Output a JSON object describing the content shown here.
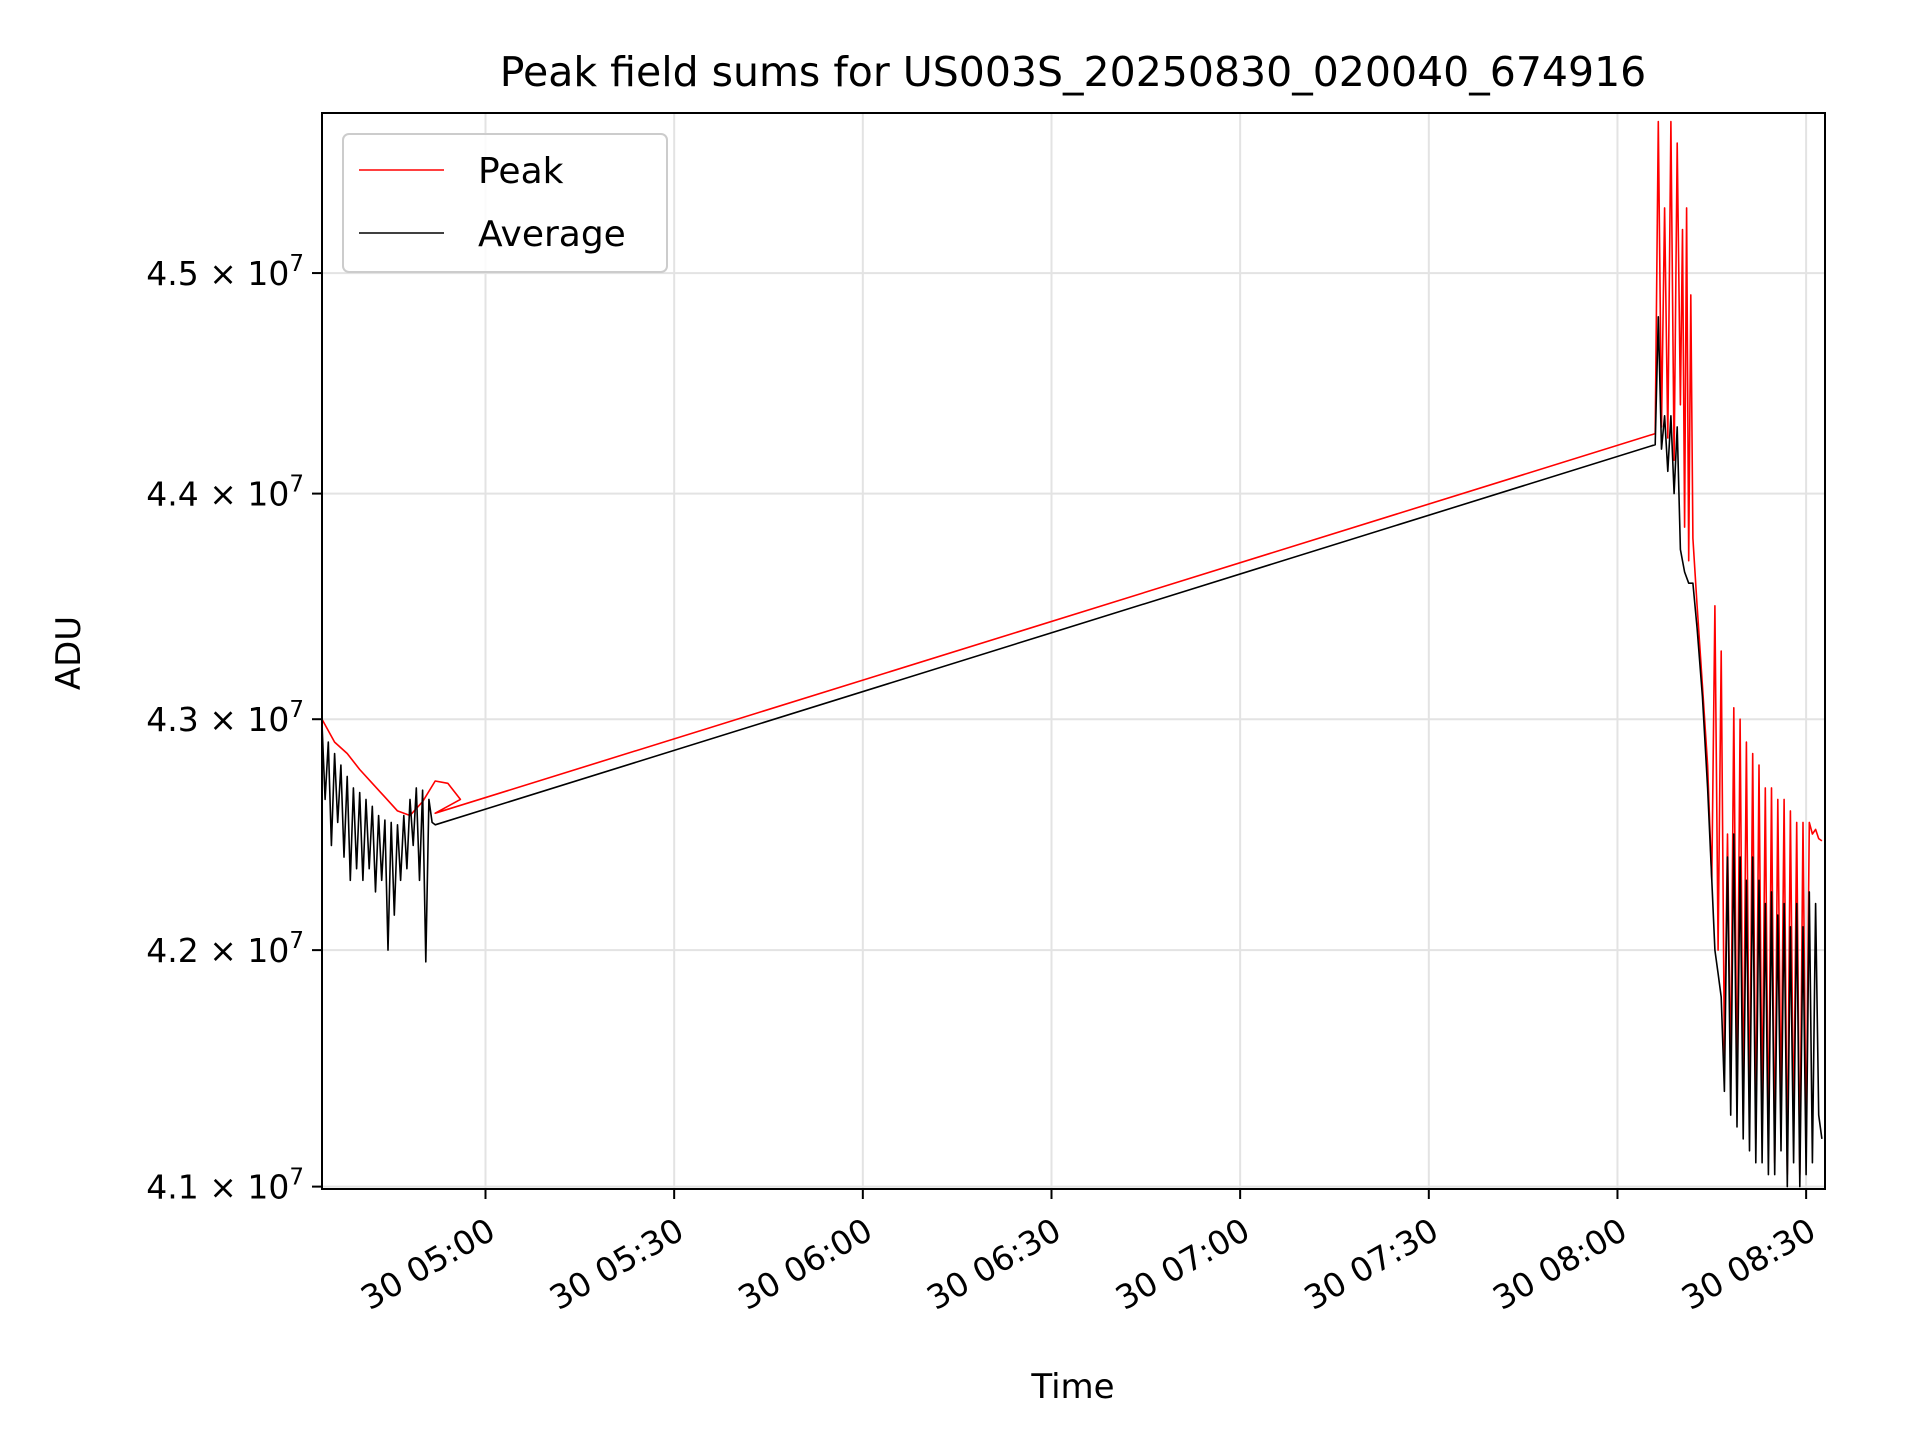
{
  "chart_data": {
    "type": "line",
    "title": "Peak field sums for US003S_20250830_020040_674916",
    "xlabel": "Time",
    "ylabel": "ADU",
    "x_tick_labels": [
      "30 05:00",
      "30 05:30",
      "30 06:00",
      "30 06:30",
      "30 07:00",
      "30 07:30",
      "30 08:00",
      "30 08:30"
    ],
    "x_tick_values": [
      "2025-08-30 05:00",
      "2025-08-30 05:30",
      "2025-08-30 06:00",
      "2025-08-30 06:30",
      "2025-08-30 07:00",
      "2025-08-30 07:30",
      "2025-08-30 08:00",
      "2025-08-30 08:30"
    ],
    "xlim": [
      "2025-08-30 04:34",
      "2025-08-30 08:33"
    ],
    "y_scale": "log",
    "y_ticks": [
      {
        "value": 41000000,
        "mantissa": "4.1",
        "exponent": "7"
      },
      {
        "value": 42000000,
        "mantissa": "4.2",
        "exponent": "7"
      },
      {
        "value": 43000000,
        "mantissa": "4.3",
        "exponent": "7"
      },
      {
        "value": 44000000,
        "mantissa": "4.4",
        "exponent": "7"
      },
      {
        "value": 45000000,
        "mantissa": "4.5",
        "exponent": "7"
      }
    ],
    "ylim": [
      40990000,
      45740000
    ],
    "grid": true,
    "legend_position": "top-left",
    "series": [
      {
        "name": "Peak",
        "color": "#ff0000",
        "points": [
          [
            "2025-08-30 04:34:00",
            43000000
          ],
          [
            "2025-08-30 04:36:00",
            42900000
          ],
          [
            "2025-08-30 04:38:00",
            42850000
          ],
          [
            "2025-08-30 04:40:00",
            42780000
          ],
          [
            "2025-08-30 04:42:00",
            42720000
          ],
          [
            "2025-08-30 04:44:00",
            42660000
          ],
          [
            "2025-08-30 04:46:00",
            42600000
          ],
          [
            "2025-08-30 04:48:00",
            42580000
          ],
          [
            "2025-08-30 04:50:00",
            42640000
          ],
          [
            "2025-08-30 04:52:00",
            42730000
          ],
          [
            "2025-08-30 04:54:00",
            42720000
          ],
          [
            "2025-08-30 04:56:00",
            42650000
          ],
          [
            "2025-08-30 04:52:00",
            42590000
          ],
          [
            "2025-08-30 08:06:00",
            44270000
          ],
          [
            "2025-08-30 08:06:30",
            45700000
          ],
          [
            "2025-08-30 08:07:00",
            44300000
          ],
          [
            "2025-08-30 08:07:30",
            45300000
          ],
          [
            "2025-08-30 08:08:00",
            44250000
          ],
          [
            "2025-08-30 08:08:30",
            45700000
          ],
          [
            "2025-08-30 08:09:00",
            44150000
          ],
          [
            "2025-08-30 08:09:30",
            45600000
          ],
          [
            "2025-08-30 08:10:00",
            44400000
          ],
          [
            "2025-08-30 08:10:20",
            45200000
          ],
          [
            "2025-08-30 08:10:40",
            43850000
          ],
          [
            "2025-08-30 08:11:00",
            45300000
          ],
          [
            "2025-08-30 08:11:20",
            43700000
          ],
          [
            "2025-08-30 08:11:40",
            44900000
          ],
          [
            "2025-08-30 08:12:00",
            43800000
          ],
          [
            "2025-08-30 08:12:40",
            43500000
          ],
          [
            "2025-08-30 08:13:30",
            43150000
          ],
          [
            "2025-08-30 08:14:20",
            42800000
          ],
          [
            "2025-08-30 08:15:00",
            42300000
          ],
          [
            "2025-08-30 08:15:30",
            43500000
          ],
          [
            "2025-08-30 08:16:00",
            42000000
          ],
          [
            "2025-08-30 08:16:30",
            43300000
          ],
          [
            "2025-08-30 08:17:00",
            41550000
          ],
          [
            "2025-08-30 08:17:30",
            42500000
          ],
          [
            "2025-08-30 08:18:00",
            41450000
          ],
          [
            "2025-08-30 08:18:30",
            43050000
          ],
          [
            "2025-08-30 08:19:00",
            41350000
          ],
          [
            "2025-08-30 08:19:30",
            43000000
          ],
          [
            "2025-08-30 08:20:00",
            41300000
          ],
          [
            "2025-08-30 08:20:30",
            42900000
          ],
          [
            "2025-08-30 08:21:00",
            41250000
          ],
          [
            "2025-08-30 08:21:30",
            42850000
          ],
          [
            "2025-08-30 08:22:00",
            41200000
          ],
          [
            "2025-08-30 08:22:30",
            42800000
          ],
          [
            "2025-08-30 08:23:00",
            41300000
          ],
          [
            "2025-08-30 08:23:30",
            42700000
          ],
          [
            "2025-08-30 08:24:00",
            41150000
          ],
          [
            "2025-08-30 08:24:30",
            42700000
          ],
          [
            "2025-08-30 08:25:00",
            41100000
          ],
          [
            "2025-08-30 08:25:30",
            42650000
          ],
          [
            "2025-08-30 08:26:00",
            41300000
          ],
          [
            "2025-08-30 08:26:30",
            42650000
          ],
          [
            "2025-08-30 08:27:00",
            41050000
          ],
          [
            "2025-08-30 08:27:30",
            42600000
          ],
          [
            "2025-08-30 08:28:00",
            41200000
          ],
          [
            "2025-08-30 08:28:30",
            42550000
          ],
          [
            "2025-08-30 08:29:00",
            41050000
          ],
          [
            "2025-08-30 08:29:30",
            42550000
          ],
          [
            "2025-08-30 08:30:00",
            41150000
          ],
          [
            "2025-08-30 08:30:30",
            42550000
          ],
          [
            "2025-08-30 08:31:00",
            42500000
          ],
          [
            "2025-08-30 08:31:30",
            42520000
          ],
          [
            "2025-08-30 08:32:00",
            42480000
          ],
          [
            "2025-08-30 08:32:30",
            42470000
          ]
        ]
      },
      {
        "name": "Average",
        "color": "#000000",
        "points": [
          [
            "2025-08-30 04:34:00",
            42980000
          ],
          [
            "2025-08-30 04:34:30",
            42650000
          ],
          [
            "2025-08-30 04:35:00",
            42900000
          ],
          [
            "2025-08-30 04:35:30",
            42450000
          ],
          [
            "2025-08-30 04:36:00",
            42850000
          ],
          [
            "2025-08-30 04:36:30",
            42550000
          ],
          [
            "2025-08-30 04:37:00",
            42800000
          ],
          [
            "2025-08-30 04:37:30",
            42400000
          ],
          [
            "2025-08-30 04:38:00",
            42750000
          ],
          [
            "2025-08-30 04:38:30",
            42300000
          ],
          [
            "2025-08-30 04:39:00",
            42700000
          ],
          [
            "2025-08-30 04:39:30",
            42350000
          ],
          [
            "2025-08-30 04:40:00",
            42680000
          ],
          [
            "2025-08-30 04:40:30",
            42300000
          ],
          [
            "2025-08-30 04:41:00",
            42650000
          ],
          [
            "2025-08-30 04:41:30",
            42350000
          ],
          [
            "2025-08-30 04:42:00",
            42620000
          ],
          [
            "2025-08-30 04:42:30",
            42250000
          ],
          [
            "2025-08-30 04:43:00",
            42580000
          ],
          [
            "2025-08-30 04:43:30",
            42300000
          ],
          [
            "2025-08-30 04:44:00",
            42560000
          ],
          [
            "2025-08-30 04:44:30",
            42000000
          ],
          [
            "2025-08-30 04:45:00",
            42550000
          ],
          [
            "2025-08-30 04:45:30",
            42150000
          ],
          [
            "2025-08-30 04:46:00",
            42540000
          ],
          [
            "2025-08-30 04:46:30",
            42300000
          ],
          [
            "2025-08-30 04:47:00",
            42580000
          ],
          [
            "2025-08-30 04:47:30",
            42350000
          ],
          [
            "2025-08-30 04:48:00",
            42650000
          ],
          [
            "2025-08-30 04:48:30",
            42450000
          ],
          [
            "2025-08-30 04:49:00",
            42700000
          ],
          [
            "2025-08-30 04:49:30",
            42300000
          ],
          [
            "2025-08-30 04:50:00",
            42690000
          ],
          [
            "2025-08-30 04:50:30",
            41950000
          ],
          [
            "2025-08-30 04:51:00",
            42650000
          ],
          [
            "2025-08-30 04:51:30",
            42550000
          ],
          [
            "2025-08-30 04:52:00",
            42540000
          ],
          [
            "2025-08-30 08:06:00",
            44220000
          ],
          [
            "2025-08-30 08:06:30",
            44800000
          ],
          [
            "2025-08-30 08:07:00",
            44200000
          ],
          [
            "2025-08-30 08:07:30",
            44350000
          ],
          [
            "2025-08-30 08:08:00",
            44100000
          ],
          [
            "2025-08-30 08:08:30",
            44350000
          ],
          [
            "2025-08-30 08:09:00",
            44000000
          ],
          [
            "2025-08-30 08:09:30",
            44300000
          ],
          [
            "2025-08-30 08:10:00",
            43750000
          ],
          [
            "2025-08-30 08:10:40",
            43650000
          ],
          [
            "2025-08-30 08:11:20",
            43600000
          ],
          [
            "2025-08-30 08:12:00",
            43600000
          ],
          [
            "2025-08-30 08:12:40",
            43400000
          ],
          [
            "2025-08-30 08:13:30",
            43100000
          ],
          [
            "2025-08-30 08:14:20",
            42700000
          ],
          [
            "2025-08-30 08:15:00",
            42300000
          ],
          [
            "2025-08-30 08:15:30",
            42000000
          ],
          [
            "2025-08-30 08:16:00",
            41900000
          ],
          [
            "2025-08-30 08:16:30",
            41800000
          ],
          [
            "2025-08-30 08:17:00",
            41400000
          ],
          [
            "2025-08-30 08:17:30",
            42400000
          ],
          [
            "2025-08-30 08:18:00",
            41300000
          ],
          [
            "2025-08-30 08:18:30",
            42500000
          ],
          [
            "2025-08-30 08:19:00",
            41250000
          ],
          [
            "2025-08-30 08:19:30",
            42400000
          ],
          [
            "2025-08-30 08:20:00",
            41200000
          ],
          [
            "2025-08-30 08:20:30",
            42300000
          ],
          [
            "2025-08-30 08:21:00",
            41150000
          ],
          [
            "2025-08-30 08:21:30",
            42400000
          ],
          [
            "2025-08-30 08:22:00",
            41100000
          ],
          [
            "2025-08-30 08:22:30",
            42300000
          ],
          [
            "2025-08-30 08:23:00",
            41100000
          ],
          [
            "2025-08-30 08:23:30",
            42200000
          ],
          [
            "2025-08-30 08:24:00",
            41050000
          ],
          [
            "2025-08-30 08:24:30",
            42250000
          ],
          [
            "2025-08-30 08:25:00",
            41050000
          ],
          [
            "2025-08-30 08:25:30",
            42150000
          ],
          [
            "2025-08-30 08:26:00",
            41150000
          ],
          [
            "2025-08-30 08:26:30",
            42200000
          ],
          [
            "2025-08-30 08:27:00",
            41000000
          ],
          [
            "2025-08-30 08:27:30",
            42100000
          ],
          [
            "2025-08-30 08:28:00",
            41100000
          ],
          [
            "2025-08-30 08:28:30",
            42200000
          ],
          [
            "2025-08-30 08:29:00",
            41000000
          ],
          [
            "2025-08-30 08:29:30",
            42100000
          ],
          [
            "2025-08-30 08:30:00",
            41050000
          ],
          [
            "2025-08-30 08:30:30",
            42250000
          ],
          [
            "2025-08-30 08:31:00",
            41100000
          ],
          [
            "2025-08-30 08:31:30",
            42200000
          ],
          [
            "2025-08-30 08:32:00",
            41300000
          ],
          [
            "2025-08-30 08:32:30",
            41200000
          ]
        ]
      }
    ]
  }
}
